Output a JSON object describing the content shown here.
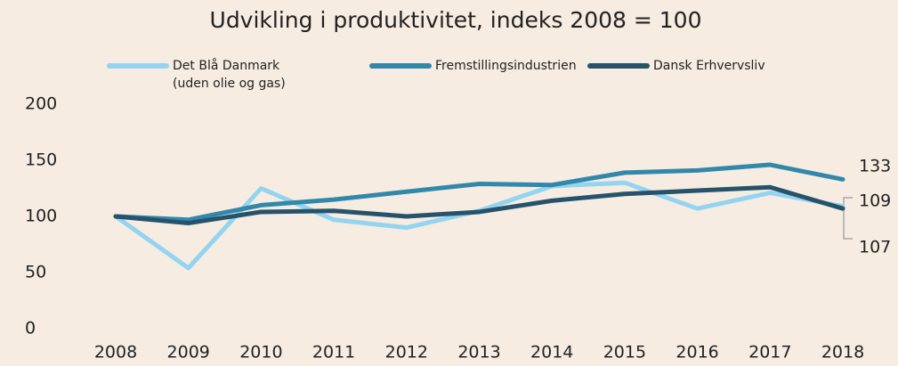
{
  "chart_data": {
    "type": "line",
    "title": "Udvikling i produktivitet, indeks 2008 = 100",
    "categories": [
      "2008",
      "2009",
      "2010",
      "2011",
      "2012",
      "2013",
      "2014",
      "2015",
      "2016",
      "2017",
      "2018"
    ],
    "series": [
      {
        "name": "Det Blå Danmark\n(uden olie og gas)",
        "color": "#93d4f0",
        "values": [
          100,
          54,
          125,
          97,
          90,
          105,
          127,
          130,
          107,
          121,
          109
        ]
      },
      {
        "name": "Fremstillingsindustrien",
        "color": "#3188ab",
        "values": [
          100,
          97,
          110,
          115,
          122,
          129,
          128,
          139,
          141,
          146,
          133
        ]
      },
      {
        "name": "Dansk Erhvervsliv",
        "color": "#26536b",
        "values": [
          100,
          94,
          104,
          105,
          100,
          104,
          114,
          120,
          123,
          126,
          107
        ]
      }
    ],
    "ylim": [
      0,
      200
    ],
    "yticks": [
      0,
      50,
      100,
      150,
      200
    ],
    "grid": false
  }
}
